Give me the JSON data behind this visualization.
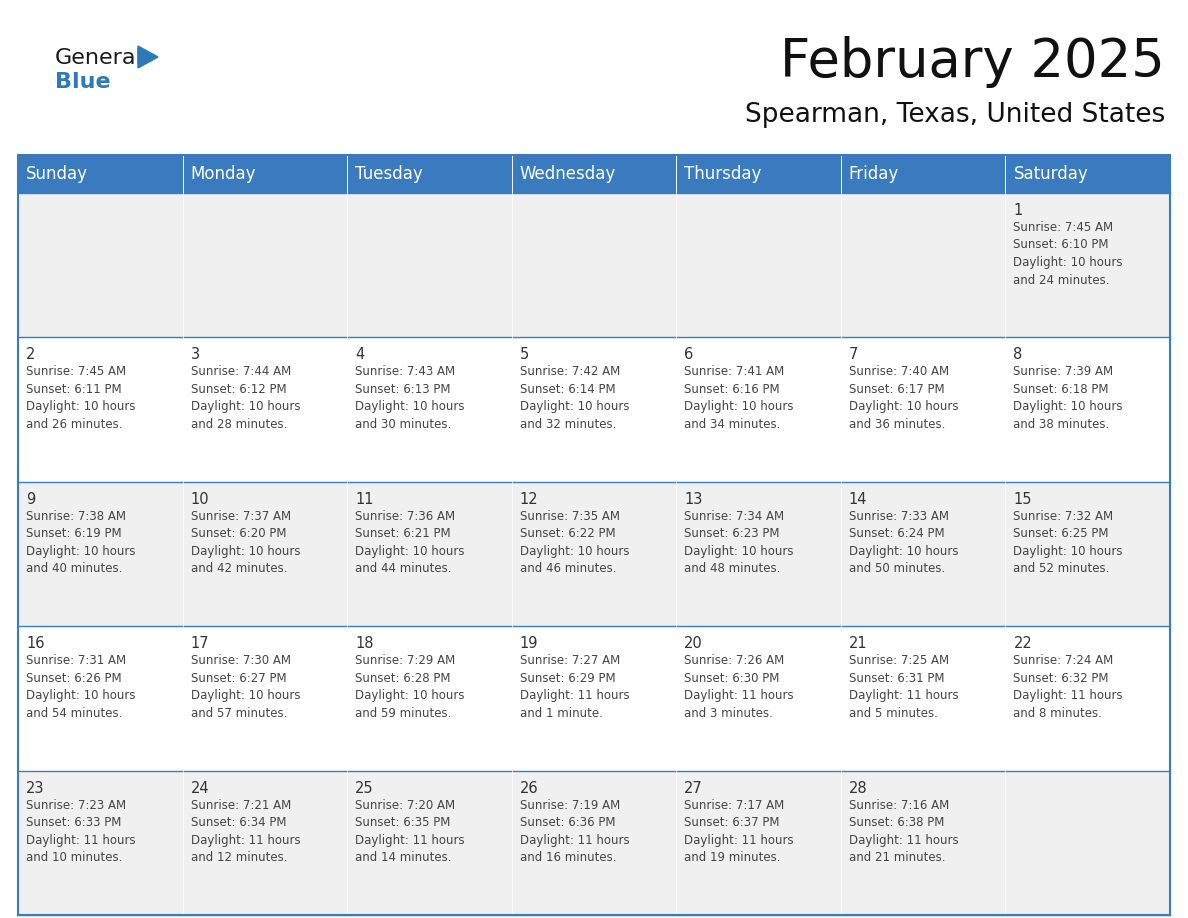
{
  "title": "February 2025",
  "subtitle": "Spearman, Texas, United States",
  "header_bg": "#3a7bbf",
  "header_text": "#ffffff",
  "row_bg_odd": "#f0f0f0",
  "row_bg_even": "#ffffff",
  "day_headers": [
    "Sunday",
    "Monday",
    "Tuesday",
    "Wednesday",
    "Thursday",
    "Friday",
    "Saturday"
  ],
  "title_fontsize": 38,
  "subtitle_fontsize": 19,
  "header_fontsize": 12,
  "cell_fontsize": 8.5,
  "day_num_fontsize": 10.5,
  "weeks": [
    [
      {
        "day": "",
        "text": ""
      },
      {
        "day": "",
        "text": ""
      },
      {
        "day": "",
        "text": ""
      },
      {
        "day": "",
        "text": ""
      },
      {
        "day": "",
        "text": ""
      },
      {
        "day": "",
        "text": ""
      },
      {
        "day": "1",
        "text": "Sunrise: 7:45 AM\nSunset: 6:10 PM\nDaylight: 10 hours\nand 24 minutes."
      }
    ],
    [
      {
        "day": "2",
        "text": "Sunrise: 7:45 AM\nSunset: 6:11 PM\nDaylight: 10 hours\nand 26 minutes."
      },
      {
        "day": "3",
        "text": "Sunrise: 7:44 AM\nSunset: 6:12 PM\nDaylight: 10 hours\nand 28 minutes."
      },
      {
        "day": "4",
        "text": "Sunrise: 7:43 AM\nSunset: 6:13 PM\nDaylight: 10 hours\nand 30 minutes."
      },
      {
        "day": "5",
        "text": "Sunrise: 7:42 AM\nSunset: 6:14 PM\nDaylight: 10 hours\nand 32 minutes."
      },
      {
        "day": "6",
        "text": "Sunrise: 7:41 AM\nSunset: 6:16 PM\nDaylight: 10 hours\nand 34 minutes."
      },
      {
        "day": "7",
        "text": "Sunrise: 7:40 AM\nSunset: 6:17 PM\nDaylight: 10 hours\nand 36 minutes."
      },
      {
        "day": "8",
        "text": "Sunrise: 7:39 AM\nSunset: 6:18 PM\nDaylight: 10 hours\nand 38 minutes."
      }
    ],
    [
      {
        "day": "9",
        "text": "Sunrise: 7:38 AM\nSunset: 6:19 PM\nDaylight: 10 hours\nand 40 minutes."
      },
      {
        "day": "10",
        "text": "Sunrise: 7:37 AM\nSunset: 6:20 PM\nDaylight: 10 hours\nand 42 minutes."
      },
      {
        "day": "11",
        "text": "Sunrise: 7:36 AM\nSunset: 6:21 PM\nDaylight: 10 hours\nand 44 minutes."
      },
      {
        "day": "12",
        "text": "Sunrise: 7:35 AM\nSunset: 6:22 PM\nDaylight: 10 hours\nand 46 minutes."
      },
      {
        "day": "13",
        "text": "Sunrise: 7:34 AM\nSunset: 6:23 PM\nDaylight: 10 hours\nand 48 minutes."
      },
      {
        "day": "14",
        "text": "Sunrise: 7:33 AM\nSunset: 6:24 PM\nDaylight: 10 hours\nand 50 minutes."
      },
      {
        "day": "15",
        "text": "Sunrise: 7:32 AM\nSunset: 6:25 PM\nDaylight: 10 hours\nand 52 minutes."
      }
    ],
    [
      {
        "day": "16",
        "text": "Sunrise: 7:31 AM\nSunset: 6:26 PM\nDaylight: 10 hours\nand 54 minutes."
      },
      {
        "day": "17",
        "text": "Sunrise: 7:30 AM\nSunset: 6:27 PM\nDaylight: 10 hours\nand 57 minutes."
      },
      {
        "day": "18",
        "text": "Sunrise: 7:29 AM\nSunset: 6:28 PM\nDaylight: 10 hours\nand 59 minutes."
      },
      {
        "day": "19",
        "text": "Sunrise: 7:27 AM\nSunset: 6:29 PM\nDaylight: 11 hours\nand 1 minute."
      },
      {
        "day": "20",
        "text": "Sunrise: 7:26 AM\nSunset: 6:30 PM\nDaylight: 11 hours\nand 3 minutes."
      },
      {
        "day": "21",
        "text": "Sunrise: 7:25 AM\nSunset: 6:31 PM\nDaylight: 11 hours\nand 5 minutes."
      },
      {
        "day": "22",
        "text": "Sunrise: 7:24 AM\nSunset: 6:32 PM\nDaylight: 11 hours\nand 8 minutes."
      }
    ],
    [
      {
        "day": "23",
        "text": "Sunrise: 7:23 AM\nSunset: 6:33 PM\nDaylight: 11 hours\nand 10 minutes."
      },
      {
        "day": "24",
        "text": "Sunrise: 7:21 AM\nSunset: 6:34 PM\nDaylight: 11 hours\nand 12 minutes."
      },
      {
        "day": "25",
        "text": "Sunrise: 7:20 AM\nSunset: 6:35 PM\nDaylight: 11 hours\nand 14 minutes."
      },
      {
        "day": "26",
        "text": "Sunrise: 7:19 AM\nSunset: 6:36 PM\nDaylight: 11 hours\nand 16 minutes."
      },
      {
        "day": "27",
        "text": "Sunrise: 7:17 AM\nSunset: 6:37 PM\nDaylight: 11 hours\nand 19 minutes."
      },
      {
        "day": "28",
        "text": "Sunrise: 7:16 AM\nSunset: 6:38 PM\nDaylight: 11 hours\nand 21 minutes."
      },
      {
        "day": "",
        "text": ""
      }
    ]
  ],
  "logo_general_color": "#1a1a1a",
  "logo_blue_color": "#2e7ab8",
  "border_color": "#3a7bbf",
  "cell_text_color": "#444444",
  "day_num_color": "#333333"
}
